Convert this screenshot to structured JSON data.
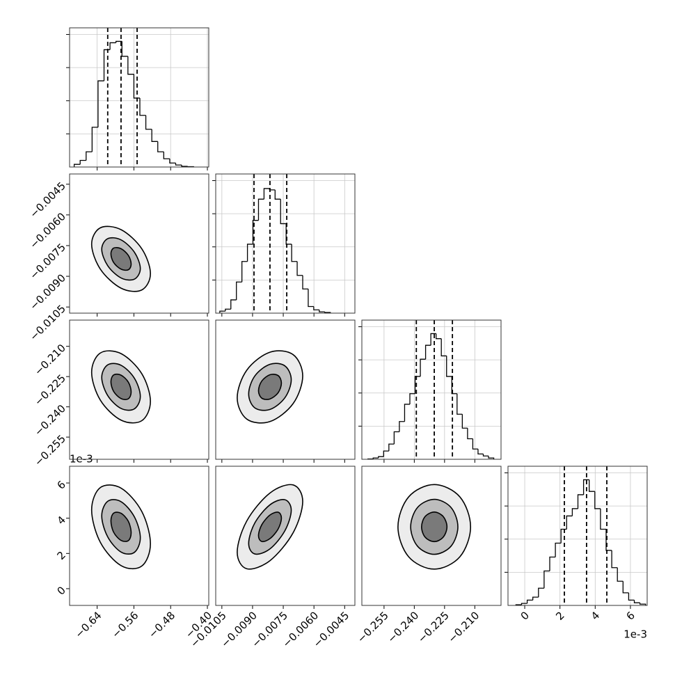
{
  "chart_data": {
    "type": "corner",
    "grid": true,
    "color": "#000000",
    "hist_ylim": [
      0,
      2100
    ],
    "hist_yticks": [
      500,
      1000,
      1500,
      2000
    ],
    "variables": [
      {
        "lim": [
          -0.7,
          -0.397
        ],
        "ticks": [
          {
            "value": -0.64,
            "label": "−0.64"
          },
          {
            "value": -0.56,
            "label": "−0.56"
          },
          {
            "value": -0.48,
            "label": "−0.48"
          },
          {
            "value": -0.4,
            "label": "−0.40"
          }
        ],
        "quantiles": [
          -0.617,
          -0.588,
          -0.553
        ],
        "bins": [
          -0.69,
          -0.677,
          -0.664,
          -0.651,
          -0.638,
          -0.625,
          -0.612,
          -0.599,
          -0.586,
          -0.573,
          -0.56,
          -0.547,
          -0.534,
          -0.521,
          -0.508,
          -0.495,
          -0.482,
          -0.469,
          -0.456,
          -0.443,
          -0.43
        ],
        "counts": [
          40,
          100,
          230,
          600,
          1300,
          1770,
          1875,
          1896,
          1670,
          1400,
          1040,
          780,
          570,
          385,
          230,
          125,
          60,
          30,
          10,
          5
        ]
      },
      {
        "lim": [
          -0.0108,
          -0.004
        ],
        "ticks": [
          {
            "value": -0.0105,
            "label": "−0.0105"
          },
          {
            "value": -0.009,
            "label": "−0.0090"
          },
          {
            "value": -0.0075,
            "label": "−0.0075"
          },
          {
            "value": -0.006,
            "label": "−0.0060"
          },
          {
            "value": -0.0045,
            "label": "−0.0045"
          }
        ],
        "quantiles": [
          -0.00893,
          -0.00815,
          -0.00733
        ],
        "bins": [
          -0.0106,
          -0.01033,
          -0.01006,
          -0.00979,
          -0.00952,
          -0.00925,
          -0.00898,
          -0.00871,
          -0.00844,
          -0.00817,
          -0.0079,
          -0.00763,
          -0.00736,
          -0.00709,
          -0.00682,
          -0.00655,
          -0.00628,
          -0.00601,
          -0.00574,
          -0.00547,
          -0.0052
        ],
        "counts": [
          30,
          60,
          200,
          470,
          780,
          1040,
          1400,
          1720,
          1880,
          1860,
          1720,
          1350,
          1040,
          780,
          570,
          365,
          100,
          50,
          20,
          10
        ]
      },
      {
        "lim": [
          -0.266,
          -0.197
        ],
        "ticks": [
          {
            "value": -0.255,
            "label": "−0.255"
          },
          {
            "value": -0.24,
            "label": "−0.240"
          },
          {
            "value": -0.225,
            "label": "−0.225"
          },
          {
            "value": -0.21,
            "label": "−0.210"
          }
        ],
        "quantiles": [
          -0.239,
          -0.2301,
          -0.2211
        ],
        "bins": [
          -0.263,
          -0.2604,
          -0.2578,
          -0.2552,
          -0.2526,
          -0.25,
          -0.2474,
          -0.2448,
          -0.2422,
          -0.2396,
          -0.237,
          -0.2344,
          -0.2318,
          -0.2292,
          -0.2266,
          -0.224,
          -0.2214,
          -0.2188,
          -0.2162,
          -0.2136,
          -0.211,
          -0.2084,
          -0.2058,
          -0.2032,
          -0.2006
        ],
        "counts": [
          5,
          20,
          40,
          125,
          230,
          415,
          570,
          830,
          990,
          1250,
          1510,
          1720,
          1896,
          1820,
          1560,
          1250,
          990,
          680,
          470,
          310,
          155,
          80,
          50,
          20
        ]
      },
      {
        "lim": [
          -0.95,
          6.95
        ],
        "ticks": [
          0,
          2,
          4,
          6
        ],
        "offset_label": "1e-3",
        "quantiles": [
          2.25,
          3.51,
          4.66
        ],
        "bins": [
          -0.5,
          -0.18,
          0.14,
          0.46,
          0.78,
          1.1,
          1.42,
          1.74,
          2.06,
          2.38,
          2.7,
          3.02,
          3.34,
          3.66,
          3.98,
          4.3,
          4.62,
          4.94,
          5.26,
          5.58,
          5.9,
          6.22,
          6.54,
          6.86
        ],
        "counts": [
          10,
          30,
          80,
          125,
          260,
          520,
          730,
          940,
          1150,
          1350,
          1460,
          1670,
          1896,
          1720,
          1460,
          1150,
          830,
          570,
          365,
          190,
          80,
          40,
          20
        ]
      }
    ],
    "panels": [
      {
        "x_var": 0,
        "y_var": 1,
        "contours": [
          {
            "x": [
              -0.524,
              -0.543,
              -0.588,
              -0.633,
              -0.652,
              -0.633,
              -0.588,
              -0.543
            ],
            "y": [
              -0.00887,
              -0.00765,
              -0.00672,
              -0.00663,
              -0.00743,
              -0.00865,
              -0.00958,
              -0.00967
            ]
          },
          {
            "x": [
              -0.546,
              -0.559,
              -0.588,
              -0.617,
              -0.63,
              -0.617,
              -0.588,
              -0.559
            ],
            "y": [
              -0.00862,
              -0.00782,
              -0.00722,
              -0.00716,
              -0.00768,
              -0.00848,
              -0.00908,
              -0.00914
            ]
          },
          {
            "x": [
              -0.566,
              -0.572,
              -0.588,
              -0.604,
              -0.61,
              -0.604,
              -0.588,
              -0.572
            ],
            "y": [
              -0.0084,
              -0.00798,
              -0.00765,
              -0.00762,
              -0.0079,
              -0.00833,
              -0.00865,
              -0.00868
            ]
          }
        ]
      },
      {
        "x_var": 0,
        "y_var": 2,
        "contours": [
          {
            "x": [
              -0.524,
              -0.543,
              -0.588,
              -0.633,
              -0.652,
              -0.633,
              -0.588,
              -0.543
            ],
            "y": [
              -0.2373,
              -0.2235,
              -0.2136,
              -0.2133,
              -0.2229,
              -0.2367,
              -0.2466,
              -0.2469
            ]
          },
          {
            "x": [
              -0.546,
              -0.559,
              -0.588,
              -0.617,
              -0.63,
              -0.617,
              -0.588,
              -0.559
            ],
            "y": [
              -0.2348,
              -0.2258,
              -0.2194,
              -0.2192,
              -0.2254,
              -0.2344,
              -0.2408,
              -0.241
            ]
          },
          {
            "x": [
              -0.566,
              -0.572,
              -0.588,
              -0.604,
              -0.61,
              -0.604,
              -0.588,
              -0.572
            ],
            "y": [
              -0.2326,
              -0.2278,
              -0.2243,
              -0.2242,
              -0.2276,
              -0.2324,
              -0.2359,
              -0.236
            ]
          }
        ]
      },
      {
        "x_var": 1,
        "y_var": 2,
        "contours": [
          {
            "x": [
              -0.00655,
              -0.00702,
              -0.00815,
              -0.00928,
              -0.00975,
              -0.00928,
              -0.00815,
              -0.00702
            ],
            "y": [
              -0.2247,
              -0.2141,
              -0.2129,
              -0.2218,
              -0.2355,
              -0.2461,
              -0.2473,
              -0.2384
            ]
          },
          {
            "x": [
              -0.00711,
              -0.00742,
              -0.00815,
              -0.00889,
              -0.00919,
              -0.00889,
              -0.00815,
              -0.00742
            ],
            "y": [
              -0.2266,
              -0.2197,
              -0.2189,
              -0.2247,
              -0.2336,
              -0.2405,
              -0.2413,
              -0.2355
            ]
          },
          {
            "x": [
              -0.00759,
              -0.00775,
              -0.00815,
              -0.00855,
              -0.00871,
              -0.00855,
              -0.00815,
              -0.00775
            ],
            "y": [
              -0.2282,
              -0.2245,
              -0.2241,
              -0.2272,
              -0.232,
              -0.2357,
              -0.2361,
              -0.233
            ]
          }
        ]
      },
      {
        "x_var": 0,
        "y_var": 3,
        "contours": [
          {
            "x": [
              -0.524,
              -0.543,
              -0.588,
              -0.633,
              -0.652,
              -0.633,
              -0.588,
              -0.543
            ],
            "y": [
              2.55,
              4.39,
              5.71,
              5.74,
              4.47,
              2.63,
              1.31,
              1.28
            ]
          },
          {
            "x": [
              -0.546,
              -0.559,
              -0.588,
              -0.617,
              -0.63,
              -0.617,
              -0.588,
              -0.559
            ],
            "y": [
              2.89,
              4.08,
              4.94,
              4.96,
              4.13,
              2.94,
              2.08,
              2.06
            ]
          },
          {
            "x": [
              -0.566,
              -0.572,
              -0.588,
              -0.604,
              -0.61,
              -0.604,
              -0.588,
              -0.572
            ],
            "y": [
              3.17,
              3.82,
              4.28,
              4.29,
              3.85,
              3.2,
              2.74,
              2.73
            ]
          }
        ]
      },
      {
        "x_var": 1,
        "y_var": 3,
        "contours": [
          {
            "x": [
              -0.00655,
              -0.00702,
              -0.00815,
              -0.00928,
              -0.00975,
              -0.00928,
              -0.00815,
              -0.00702
            ],
            "y": [
              4.95,
              5.89,
              5.43,
              3.85,
              2.07,
              1.13,
              1.59,
              3.17
            ]
          },
          {
            "x": [
              -0.00711,
              -0.00742,
              -0.00815,
              -0.00889,
              -0.00919,
              -0.00889,
              -0.00815,
              -0.00742
            ],
            "y": [
              4.45,
              5.05,
              4.76,
              3.73,
              2.57,
              1.97,
              2.26,
              3.29
            ]
          },
          {
            "x": [
              -0.00759,
              -0.00775,
              -0.00815,
              -0.00855,
              -0.00871,
              -0.00855,
              -0.00815,
              -0.00775
            ],
            "y": [
              4.01,
              4.34,
              4.18,
              3.63,
              3.01,
              2.68,
              2.84,
              3.39
            ]
          }
        ]
      },
      {
        "x_var": 2,
        "y_var": 3,
        "contours": [
          {
            "x": [
              -0.2121,
              -0.2174,
              -0.2301,
              -0.2428,
              -0.2481,
              -0.2428,
              -0.2301,
              -0.2174
            ],
            "y": [
              3.51,
              5.21,
              5.91,
              5.21,
              3.51,
              1.81,
              1.11,
              1.81
            ]
          },
          {
            "x": [
              -0.2184,
              -0.2218,
              -0.2301,
              -0.2384,
              -0.2418,
              -0.2384,
              -0.2301,
              -0.2218
            ],
            "y": [
              3.51,
              4.61,
              5.07,
              4.61,
              3.51,
              2.41,
              1.95,
              2.41
            ]
          },
          {
            "x": [
              -0.2238,
              -0.2257,
              -0.2301,
              -0.2346,
              -0.2364,
              -0.2346,
              -0.2301,
              -0.2257
            ],
            "y": [
              3.51,
              4.1,
              4.35,
              4.1,
              3.51,
              2.92,
              2.67,
              2.92
            ]
          }
        ]
      }
    ]
  }
}
